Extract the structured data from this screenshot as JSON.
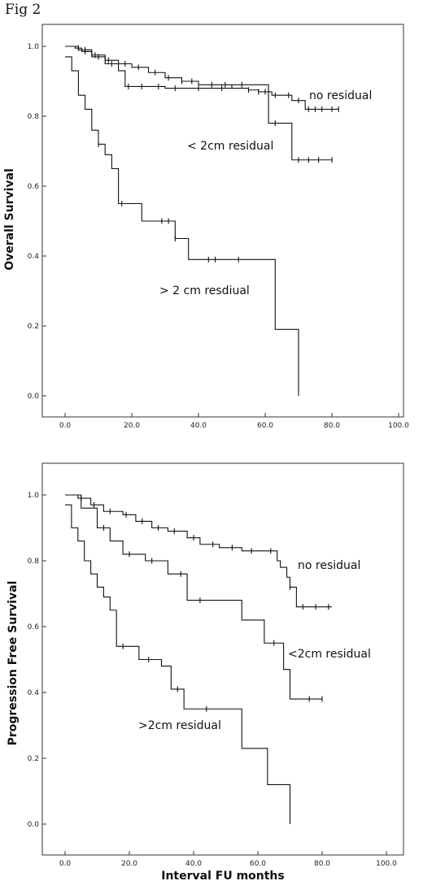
{
  "figure_label": "Fig 2",
  "chart_data": [
    {
      "type": "line",
      "subtype": "kaplan-meier",
      "title": "",
      "xlabel": "Interval FU months",
      "ylabel": "Overall Survival",
      "xlim": [
        0,
        100
      ],
      "ylim": [
        0,
        1
      ],
      "xticks": [
        "0.0",
        "20.0",
        "40.0",
        "60.0",
        "80.0",
        "100.0"
      ],
      "yticks": [
        "0.0",
        "0.2",
        "0.4",
        "0.6",
        "0.8",
        "1.0"
      ],
      "grid": false,
      "series": [
        {
          "name": "no residual",
          "x": [
            0,
            3,
            5,
            8,
            12,
            16,
            20,
            25,
            30,
            35,
            40,
            45,
            50,
            55,
            58,
            62,
            68,
            72,
            80,
            82
          ],
          "y": [
            1.0,
            0.995,
            0.985,
            0.975,
            0.96,
            0.95,
            0.94,
            0.925,
            0.91,
            0.9,
            0.89,
            0.89,
            0.88,
            0.875,
            0.87,
            0.86,
            0.845,
            0.82,
            0.82,
            0.82
          ],
          "censor_x": [
            4,
            6,
            9,
            13,
            18,
            22,
            27,
            31,
            35,
            38,
            44,
            48,
            55,
            58,
            60,
            63,
            67,
            70,
            73,
            75,
            77,
            80,
            82
          ],
          "label_position": "upper-right"
        },
        {
          "name": "< 2cm residual",
          "x": [
            0,
            4,
            8,
            12,
            16,
            18,
            30,
            40,
            50,
            58,
            61,
            67,
            68,
            80
          ],
          "y": [
            1.0,
            0.99,
            0.97,
            0.95,
            0.93,
            0.885,
            0.88,
            0.88,
            0.89,
            0.89,
            0.78,
            0.78,
            0.675,
            0.675
          ],
          "censor_x": [
            6,
            10,
            14,
            19,
            23,
            28,
            33,
            40,
            47,
            53,
            63,
            70,
            73,
            76,
            80
          ],
          "label_position": "middle-right"
        },
        {
          "name": "> 2 cm resdiual",
          "x": [
            0,
            2,
            4,
            6,
            8,
            10,
            12,
            14,
            16,
            20,
            23,
            30,
            33,
            37,
            40,
            50,
            55,
            60,
            63,
            65,
            70
          ],
          "y": [
            0.97,
            0.93,
            0.86,
            0.82,
            0.76,
            0.72,
            0.69,
            0.65,
            0.55,
            0.55,
            0.5,
            0.5,
            0.45,
            0.39,
            0.39,
            0.39,
            0.39,
            0.39,
            0.19,
            0.19,
            0.0
          ],
          "censor_x": [
            10,
            17,
            29,
            31,
            33,
            43,
            45,
            52
          ],
          "label_position": "lower-middle"
        }
      ]
    },
    {
      "type": "line",
      "subtype": "kaplan-meier",
      "title": "",
      "xlabel": "Interval FU months",
      "ylabel": "Progression Free Survival",
      "xlim": [
        0,
        100
      ],
      "ylim": [
        0,
        1
      ],
      "xticks": [
        "0.0",
        "20.0",
        "40.0",
        "60.0",
        "80.0",
        "100.0"
      ],
      "yticks": [
        "0.0",
        "0.2",
        "0.4",
        "0.6",
        "0.8",
        "1.0"
      ],
      "grid": false,
      "series": [
        {
          "name": "no residual",
          "x": [
            0,
            4,
            8,
            12,
            18,
            22,
            27,
            32,
            38,
            42,
            48,
            55,
            62,
            66,
            67,
            69,
            70,
            72,
            83
          ],
          "y": [
            1.0,
            0.99,
            0.97,
            0.95,
            0.94,
            0.92,
            0.9,
            0.89,
            0.87,
            0.85,
            0.84,
            0.83,
            0.83,
            0.8,
            0.78,
            0.75,
            0.72,
            0.66,
            0.66
          ],
          "censor_x": [
            5,
            9,
            14,
            19,
            24,
            29,
            34,
            40,
            46,
            52,
            58,
            64,
            70,
            74,
            78,
            82
          ],
          "label_position": "upper-right"
        },
        {
          "name": "<2cm residual",
          "x": [
            0,
            5,
            10,
            14,
            18,
            25,
            32,
            38,
            45,
            55,
            62,
            68,
            70,
            80
          ],
          "y": [
            1.0,
            0.96,
            0.9,
            0.86,
            0.82,
            0.8,
            0.76,
            0.68,
            0.68,
            0.62,
            0.55,
            0.47,
            0.38,
            0.38
          ],
          "censor_x": [
            12,
            20,
            27,
            36,
            42,
            65,
            76,
            80
          ],
          "label_position": "middle-right"
        },
        {
          "name": ">2cm residual",
          "x": [
            0,
            2,
            4,
            6,
            8,
            10,
            12,
            14,
            16,
            20,
            23,
            30,
            33,
            37,
            40,
            50,
            55,
            60,
            63,
            65,
            70
          ],
          "y": [
            0.97,
            0.9,
            0.86,
            0.8,
            0.76,
            0.72,
            0.69,
            0.65,
            0.54,
            0.54,
            0.5,
            0.48,
            0.41,
            0.35,
            0.35,
            0.35,
            0.23,
            0.23,
            0.12,
            0.12,
            0.0
          ],
          "censor_x": [
            18,
            26,
            35,
            44
          ],
          "label_position": "lower-middle"
        }
      ]
    }
  ]
}
